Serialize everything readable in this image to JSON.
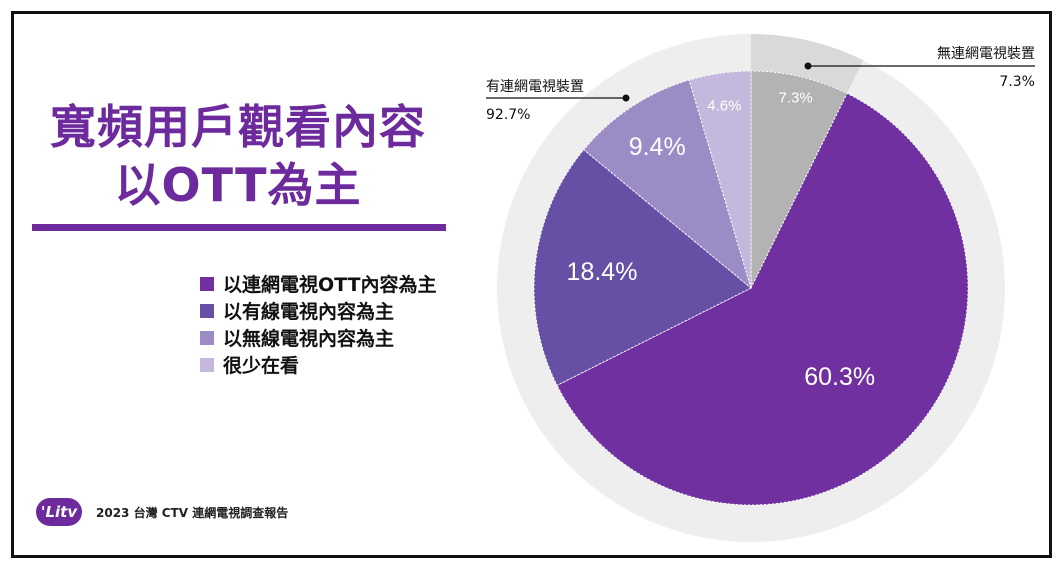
{
  "title": {
    "line1": "寬頻用戶觀看內容",
    "line2": "以OTT為主"
  },
  "legend": [
    {
      "label": "以連網電視OTT內容為主",
      "color": "#7030a0"
    },
    {
      "label": "以有線電視內容為主",
      "color": "#6650a6"
    },
    {
      "label": "以無線電視內容為主",
      "color": "#9c8cc6"
    },
    {
      "label": "很少在看",
      "color": "#c4b9dc"
    }
  ],
  "footer": {
    "logo_text": "'Litv",
    "source": "2023 台灣 CTV 連網電視調查報告"
  },
  "chart_data": {
    "type": "pie",
    "outer_ring": [
      {
        "label": "無連網電視裝置",
        "value": 7.3,
        "value_label": "7.3%",
        "color": "#d9d9d9"
      },
      {
        "label": "有連網電視裝置",
        "value": 92.7,
        "value_label": "92.7%",
        "color": "#eeeeee"
      }
    ],
    "inner_slices": [
      {
        "label": "無連網電視裝置",
        "value": 7.3,
        "value_label": "7.3%",
        "color": "#b3b3b3"
      },
      {
        "label": "以連網電視OTT內容為主",
        "value": 60.3,
        "value_label": "60.3%",
        "color": "#7030a0"
      },
      {
        "label": "以有線電視內容為主",
        "value": 18.4,
        "value_label": "18.4%",
        "color": "#6650a6"
      },
      {
        "label": "以無線電視內容為主",
        "value": 9.4,
        "value_label": "9.4%",
        "color": "#9c8cc6"
      },
      {
        "label": "很少在看",
        "value": 4.6,
        "value_label": "4.6%",
        "color": "#c4b9dc"
      }
    ]
  }
}
